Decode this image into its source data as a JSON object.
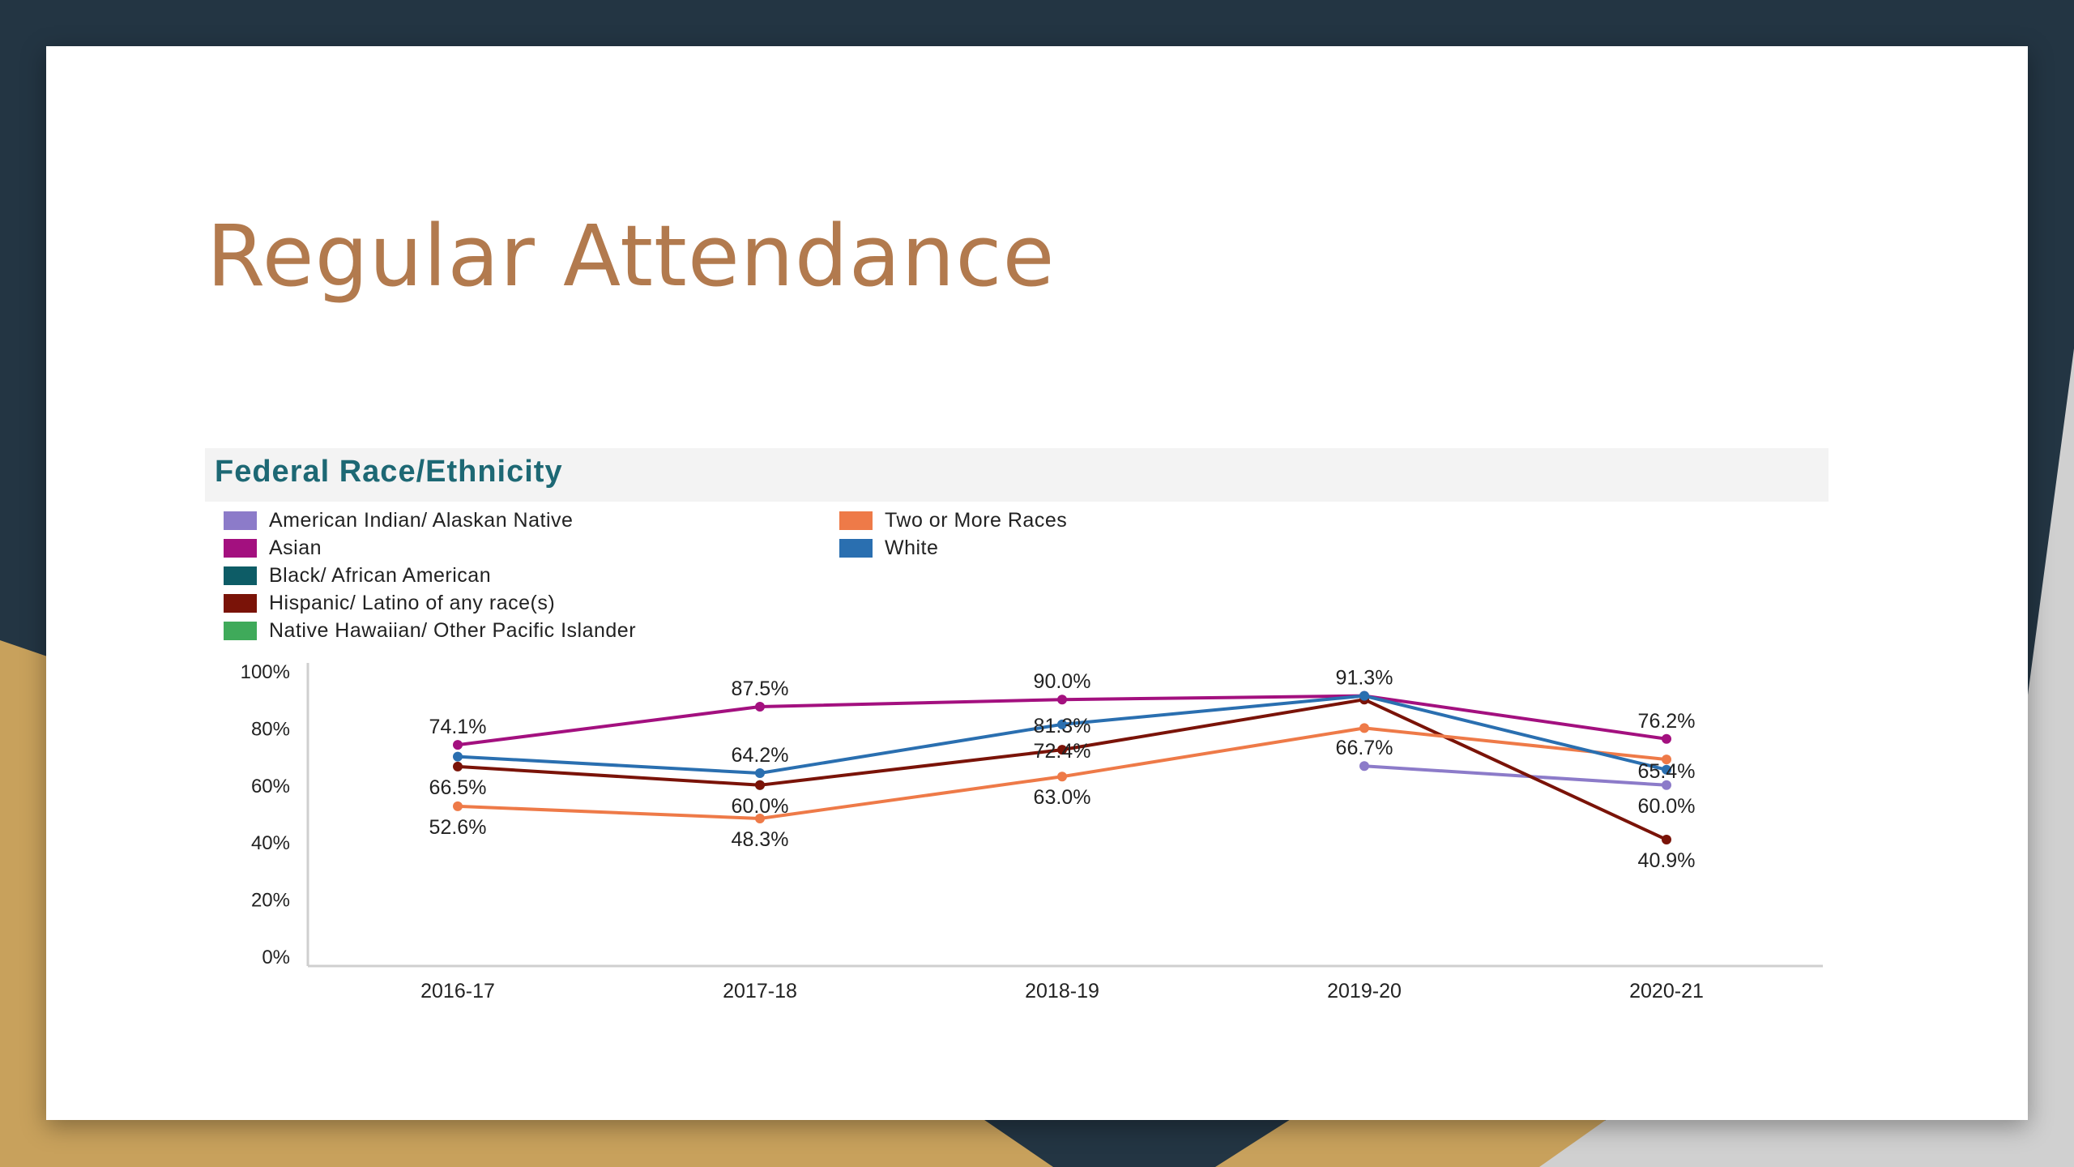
{
  "slide": {
    "title": "Regular Attendance"
  },
  "colors": {
    "background_dark": "#233543",
    "accent_gold": "#c8a15c",
    "title": "#b27a4e",
    "chart_title": "#1d6874"
  },
  "chart_data": {
    "type": "line",
    "title": "Federal Race/Ethnicity",
    "xlabel": "",
    "ylabel": "",
    "categories": [
      "2016-17",
      "2017-18",
      "2018-19",
      "2019-20",
      "2020-21"
    ],
    "ylim": [
      0,
      100
    ],
    "yticks": [
      {
        "value": 0,
        "label": "0%"
      },
      {
        "value": 20,
        "label": "20%"
      },
      {
        "value": 40,
        "label": "40%"
      },
      {
        "value": 60,
        "label": "60%"
      },
      {
        "value": 80,
        "label": "80%"
      },
      {
        "value": 100,
        "label": "100%"
      }
    ],
    "legend_position": "top-left",
    "series": [
      {
        "name": "American Indian/ Alaskan Native",
        "color": "#8c7bc9",
        "values": [
          null,
          null,
          null,
          66.7,
          60.0
        ]
      },
      {
        "name": "Asian",
        "color": "#a3107f",
        "values": [
          74.1,
          87.5,
          90.0,
          91.3,
          76.2
        ]
      },
      {
        "name": "Black/ African American",
        "color": "#0d5c66",
        "values": [
          null,
          60.0,
          null,
          null,
          null
        ]
      },
      {
        "name": "Hispanic/ Latino of any race(s)",
        "color": "#7a1308",
        "values": [
          66.5,
          60.0,
          72.4,
          90.0,
          40.9
        ]
      },
      {
        "name": "Native Hawaiian/ Other Pacific Islander",
        "color": "#3faa5a",
        "values": [
          null,
          null,
          null,
          null,
          null
        ]
      },
      {
        "name": "Two or More Races",
        "color": "#ee7a48",
        "values": [
          52.6,
          48.3,
          63.0,
          80.0,
          69.0
        ]
      },
      {
        "name": "White",
        "color": "#2a6fb0",
        "values": [
          70.0,
          64.2,
          81.3,
          91.3,
          65.4
        ]
      }
    ],
    "data_labels": [
      {
        "category": "2016-17",
        "value": 74.1,
        "text": "74.1%",
        "position": "above"
      },
      {
        "category": "2016-17",
        "value": 66.5,
        "text": "66.5%",
        "position": "below"
      },
      {
        "category": "2016-17",
        "value": 52.6,
        "text": "52.6%",
        "position": "below"
      },
      {
        "category": "2017-18",
        "value": 87.5,
        "text": "87.5%",
        "position": "above"
      },
      {
        "category": "2017-18",
        "value": 64.2,
        "text": "64.2%",
        "position": "above"
      },
      {
        "category": "2017-18",
        "value": 60.0,
        "text": "60.0%",
        "position": "below"
      },
      {
        "category": "2017-18",
        "value": 48.3,
        "text": "48.3%",
        "position": "below"
      },
      {
        "category": "2018-19",
        "value": 90.0,
        "text": "90.0%",
        "position": "above"
      },
      {
        "category": "2018-19",
        "value": 81.3,
        "text": "81.3%",
        "position": "center"
      },
      {
        "category": "2018-19",
        "value": 72.4,
        "text": "72.4%",
        "position": "center"
      },
      {
        "category": "2018-19",
        "value": 63.0,
        "text": "63.0%",
        "position": "below"
      },
      {
        "category": "2019-20",
        "value": 91.3,
        "text": "91.3%",
        "position": "above"
      },
      {
        "category": "2019-20",
        "value": 66.7,
        "text": "66.7%",
        "position": "above"
      },
      {
        "category": "2020-21",
        "value": 76.2,
        "text": "76.2%",
        "position": "above"
      },
      {
        "category": "2020-21",
        "value": 65.4,
        "text": "65.4%",
        "position": "center"
      },
      {
        "category": "2020-21",
        "value": 60.0,
        "text": "60.0%",
        "position": "below"
      },
      {
        "category": "2020-21",
        "value": 40.9,
        "text": "40.9%",
        "position": "below"
      }
    ]
  }
}
